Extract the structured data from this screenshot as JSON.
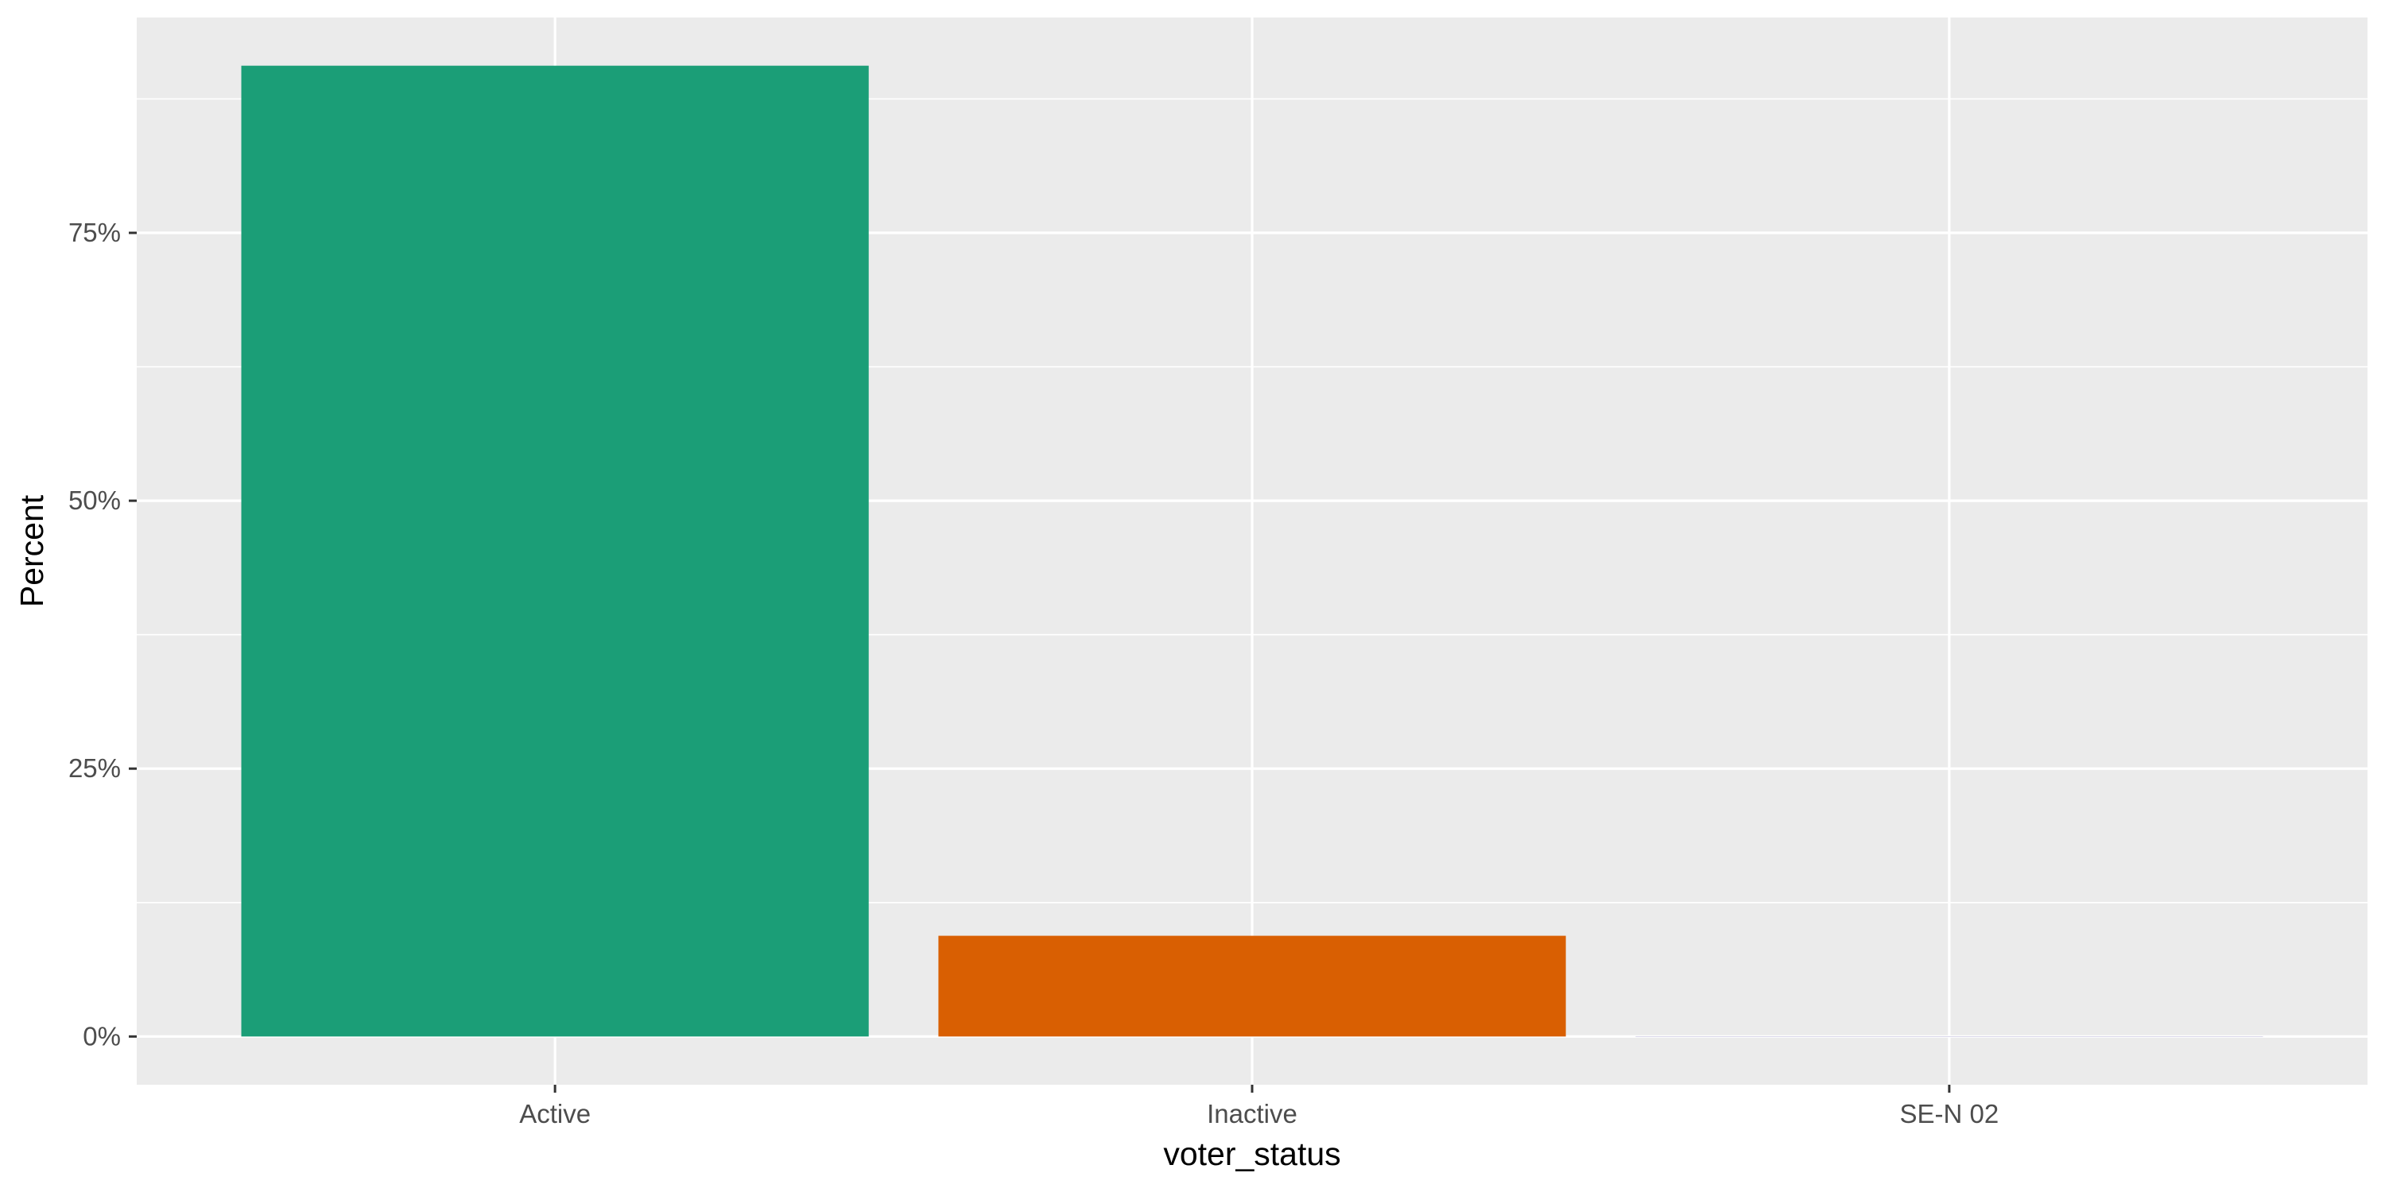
{
  "chart_data": {
    "type": "bar",
    "title": "",
    "xlabel": "voter_status",
    "ylabel": "Percent",
    "categories": [
      "Active",
      "Inactive",
      "SE-N 02"
    ],
    "values": [
      90.6,
      9.4,
      0.02
    ],
    "value_unit": "percent",
    "bar_colors": [
      "#1B9E77",
      "#D95F02",
      "#7570B3"
    ],
    "ylim": [
      -4.5,
      95.1
    ],
    "y_ticks": [
      0,
      25,
      50,
      75
    ],
    "y_tick_labels": [
      "0%",
      "25%",
      "50%",
      "75%"
    ],
    "grid": true,
    "legend": "none",
    "panel_background": "#EBEBEB",
    "gridline_color": "#FFFFFF"
  }
}
